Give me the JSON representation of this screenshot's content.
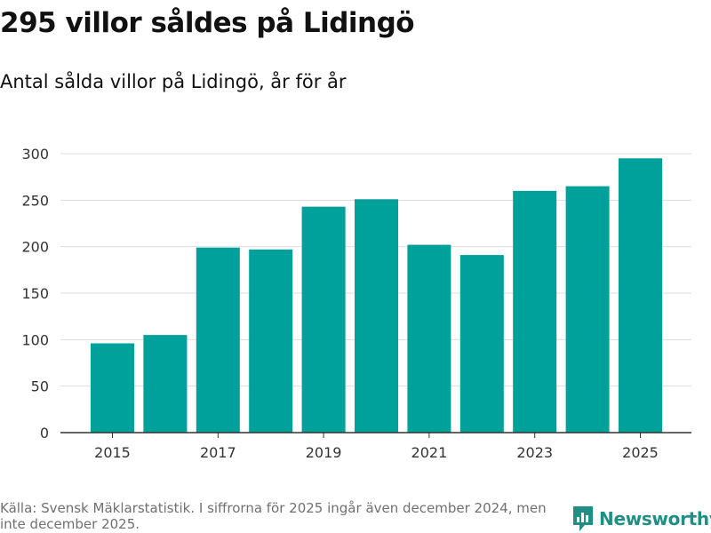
{
  "title": "295 villor såldes på Lidingö",
  "subtitle": "Antal sålda villor på Lidingö, år för år",
  "source": "Källa: Svensk Mäklarstatistik. I siffrorna för 2025 ingår även december 2024, men inte december 2025.",
  "brand": {
    "name": "Newsworthy",
    "color": "#1f8f86"
  },
  "colors": {
    "bar": "#00a19a",
    "grid": "#dddddd",
    "axis": "#333333",
    "tick_text": "#333333"
  },
  "chart_data": {
    "type": "bar",
    "title": "295 villor såldes på Lidingö",
    "subtitle": "Antal sålda villor på Lidingö, år för år",
    "xlabel": "",
    "ylabel": "",
    "categories": [
      "2015",
      "2016",
      "2017",
      "2018",
      "2019",
      "2020",
      "2021",
      "2022",
      "2023",
      "2024",
      "2025"
    ],
    "values": [
      96,
      105,
      199,
      197,
      243,
      251,
      202,
      191,
      260,
      265,
      295
    ],
    "x_tick_labels": [
      "2015",
      "2017",
      "2019",
      "2021",
      "2023",
      "2025"
    ],
    "ylim": [
      0,
      300
    ],
    "yticks": [
      0,
      50,
      100,
      150,
      200,
      250,
      300
    ],
    "grid": true,
    "legend": "none"
  }
}
